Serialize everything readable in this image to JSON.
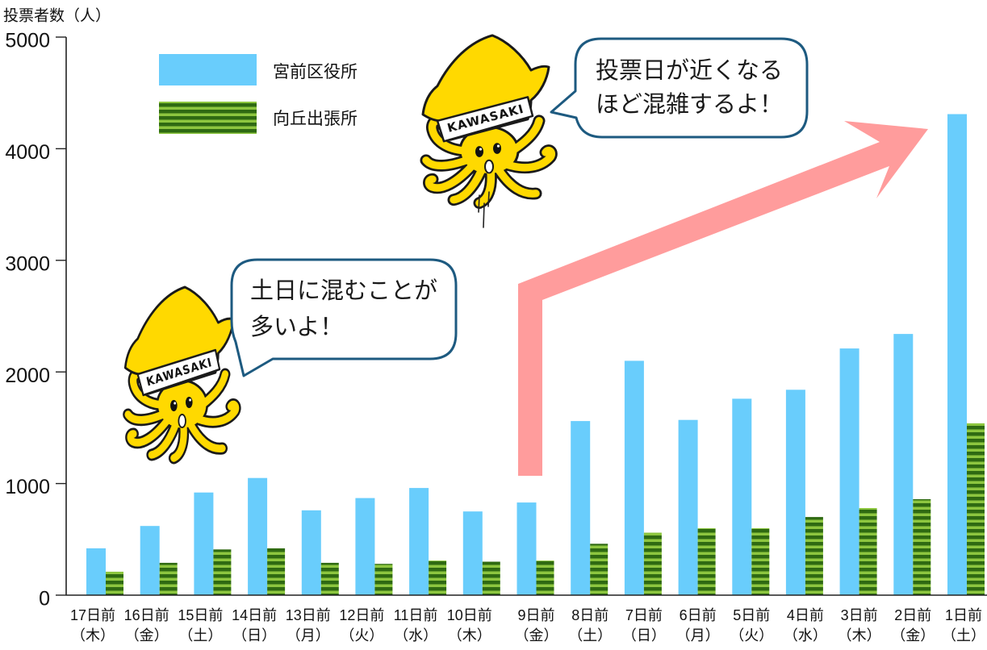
{
  "colors": {
    "series_1": "#69cdfc",
    "series_2_stripe_dark": "#2f6a12",
    "series_2_stripe_light": "#8dc63f",
    "arrow": "#ff9c9c",
    "bubble_border": "#1d5a80",
    "mascot": "#ffd900"
  },
  "chart_data": {
    "type": "bar",
    "title": "",
    "xlabel": "",
    "ylabel": "投票者数（人）",
    "ylim": [
      0,
      5000
    ],
    "yticks": [
      0,
      1000,
      2000,
      3000,
      4000,
      5000
    ],
    "grid": false,
    "legend": "top-left",
    "categories": [
      "17日前",
      "16日前",
      "15日前",
      "14日前",
      "13日前",
      "12日前",
      "11日前",
      "10日前",
      "9日前",
      "8日前",
      "7日前",
      "6日前",
      "5日前",
      "4日前",
      "3日前",
      "2日前",
      "1日前"
    ],
    "category_weekdays": [
      "（木）",
      "（金）",
      "（土）",
      "（日）",
      "（月）",
      "（火）",
      "（水）",
      "（木）",
      "（金）",
      "（土）",
      "（日）",
      "（月）",
      "（火）",
      "（水）",
      "（木）",
      "（金）",
      "（土）"
    ],
    "series": [
      {
        "name": "宮前区役所",
        "values": [
          420,
          620,
          920,
          1050,
          760,
          870,
          960,
          750,
          830,
          1560,
          2100,
          1570,
          1760,
          1840,
          2210,
          2340,
          4310
        ]
      },
      {
        "name": "向丘出張所",
        "values": [
          210,
          290,
          410,
          420,
          290,
          280,
          310,
          300,
          310,
          460,
          560,
          600,
          600,
          700,
          780,
          860,
          1540
        ]
      }
    ]
  },
  "annotations": {
    "bubble_top": {
      "lines": [
        "投票日が近くなる",
        "ほど混雑するよ！"
      ]
    },
    "bubble_left": {
      "lines": [
        "土日に混むことが",
        "多いよ！"
      ]
    }
  },
  "mascot": {
    "headband_text": "KAWASAKI"
  }
}
